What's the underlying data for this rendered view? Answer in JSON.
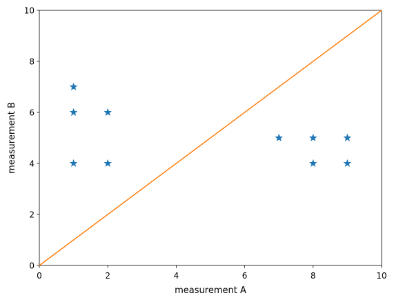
{
  "chart_data": {
    "type": "scatter",
    "x_label": "measurement A",
    "y_label": "measurement B",
    "xlim": [
      0,
      10
    ],
    "ylim": [
      0,
      10
    ],
    "xticks": [
      0,
      2,
      4,
      6,
      8,
      10
    ],
    "yticks": [
      0,
      2,
      4,
      6,
      8,
      10
    ],
    "grid": false,
    "series": [
      {
        "type": "scatter",
        "marker": "star",
        "color": "#1f77b4",
        "x": [
          1,
          1,
          2,
          1,
          2,
          7,
          8,
          9,
          8,
          9
        ],
        "values": [
          7,
          6,
          6,
          4,
          4,
          5,
          5,
          5,
          4,
          4
        ]
      },
      {
        "type": "line",
        "color": "#ff7f0e",
        "x": [
          0,
          10
        ],
        "values": [
          0,
          10
        ]
      }
    ]
  }
}
